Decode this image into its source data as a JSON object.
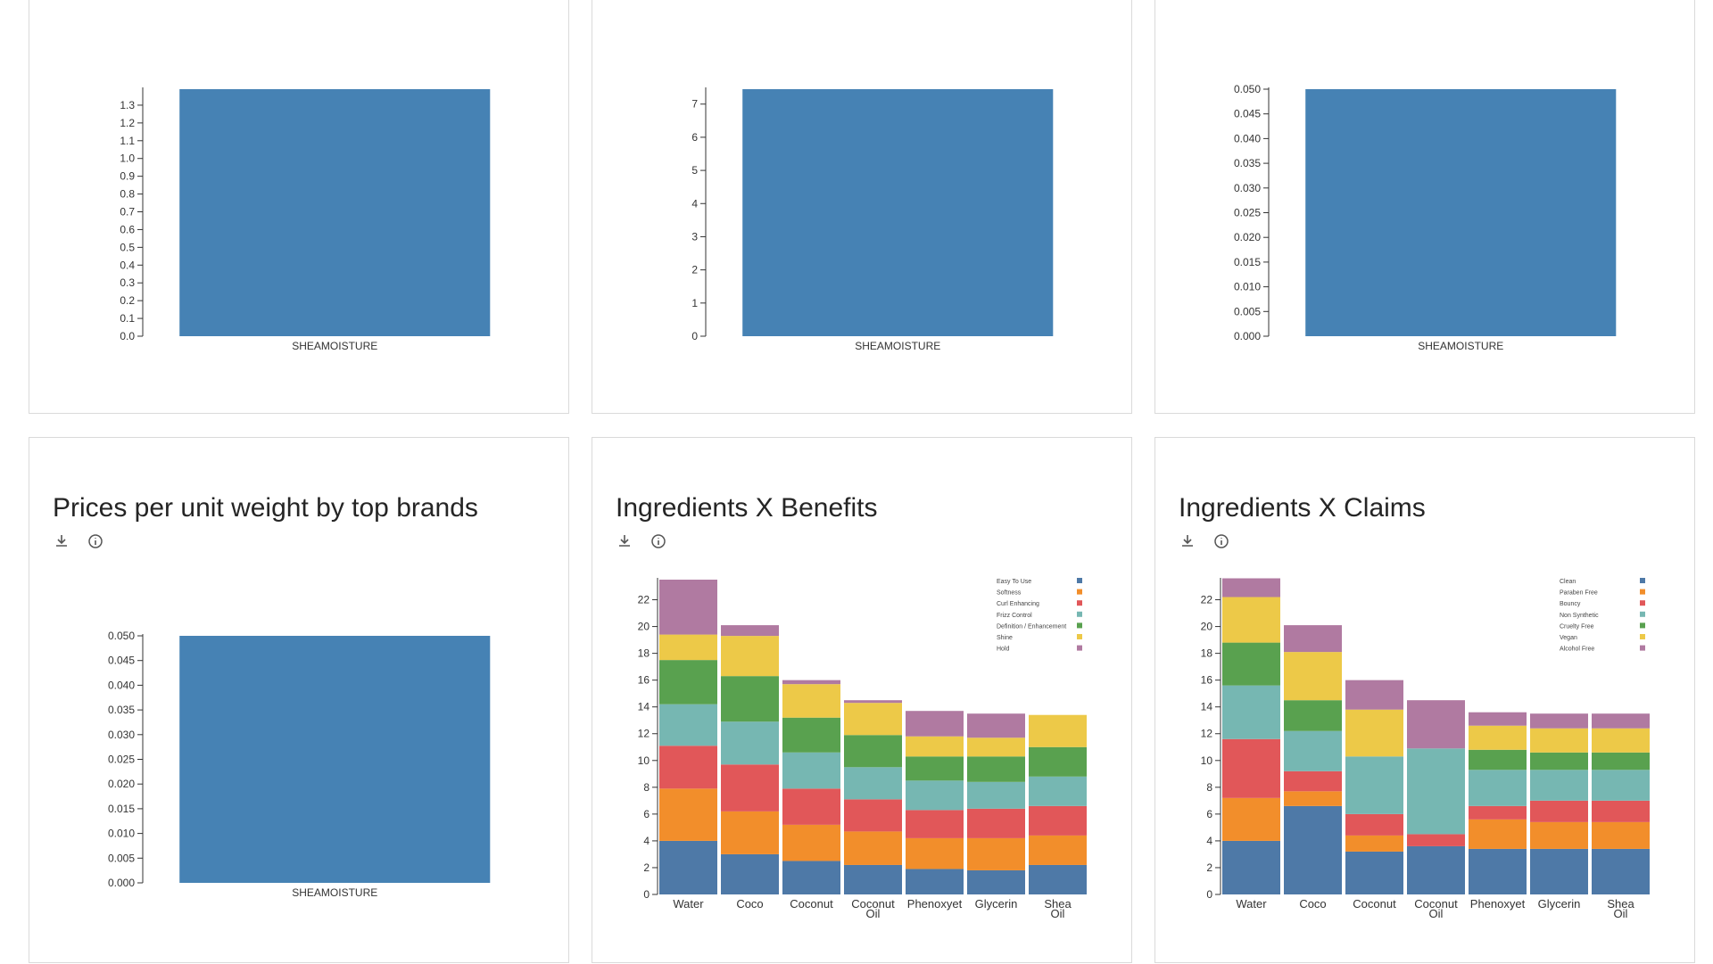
{
  "icons": {
    "download": "download-icon",
    "info": "info-icon"
  },
  "colors": {
    "bar": "#4682b4",
    "card_border": "#dadada"
  },
  "cards": [
    {
      "title": ""
    },
    {
      "title": ""
    },
    {
      "title": ""
    },
    {
      "title": "Prices per unit weight by top brands"
    },
    {
      "title": "Ingredients X Benefits"
    },
    {
      "title": "Ingredients X Claims"
    }
  ],
  "chart_data": [
    {
      "type": "bar",
      "categories": [
        "SHEAMOISTURE"
      ],
      "values": [
        1.39
      ],
      "ylim": [
        0,
        1.39
      ],
      "ticks": [
        0.0,
        0.1,
        0.2,
        0.3,
        0.4,
        0.5,
        0.6,
        0.7,
        0.8,
        0.9,
        1.0,
        1.1,
        1.2,
        1.3
      ],
      "tick_decimals": 1,
      "color": "#4682b4"
    },
    {
      "type": "bar",
      "categories": [
        "SHEAMOISTURE"
      ],
      "values": [
        7.45
      ],
      "ylim": [
        0,
        7.45
      ],
      "ticks": [
        0,
        1,
        2,
        3,
        4,
        5,
        6,
        7
      ],
      "tick_decimals": 0,
      "color": "#4682b4"
    },
    {
      "type": "bar",
      "categories": [
        "SHEAMOISTURE"
      ],
      "values": [
        0.05
      ],
      "ylim": [
        0,
        0.05
      ],
      "ticks": [
        0.0,
        0.005,
        0.01,
        0.015,
        0.02,
        0.025,
        0.03,
        0.035,
        0.04,
        0.045,
        0.05
      ],
      "tick_decimals": 3,
      "color": "#4682b4"
    },
    {
      "type": "bar",
      "title": "Prices per unit weight by top brands",
      "categories": [
        "SHEAMOISTURE"
      ],
      "values": [
        0.05
      ],
      "ylim": [
        0,
        0.05
      ],
      "ticks": [
        0.0,
        0.005,
        0.01,
        0.015,
        0.02,
        0.025,
        0.03,
        0.035,
        0.04,
        0.045,
        0.05
      ],
      "tick_decimals": 3,
      "color": "#4682b4"
    },
    {
      "type": "bar",
      "stacked": true,
      "title": "Ingredients X Benefits",
      "categories": [
        "Water",
        "Coco",
        "Coconut",
        "Coconut Oil",
        "Phenoxyet",
        "Glycerin",
        "Shea Oil"
      ],
      "ylim": [
        0,
        23.5
      ],
      "ticks": [
        0,
        2,
        4,
        6,
        8,
        10,
        12,
        14,
        16,
        18,
        20,
        22
      ],
      "tick_decimals": 0,
      "legend_position": "top-right",
      "series": [
        {
          "name": "Easy To Use",
          "color": "#4e79a7",
          "values": [
            4.0,
            3.0,
            2.5,
            2.2,
            1.9,
            1.8,
            2.2
          ]
        },
        {
          "name": "Softness",
          "color": "#f28e2b",
          "values": [
            3.9,
            3.2,
            2.7,
            2.5,
            2.3,
            2.4,
            2.2
          ]
        },
        {
          "name": "Curl Enhancing",
          "color": "#e15759",
          "values": [
            3.2,
            3.5,
            2.7,
            2.4,
            2.1,
            2.2,
            2.2
          ]
        },
        {
          "name": "Frizz Control",
          "color": "#76b7b2",
          "values": [
            3.1,
            3.2,
            2.7,
            2.4,
            2.2,
            2.0,
            2.2
          ]
        },
        {
          "name": "Definition / Enhancement",
          "color": "#59a14f",
          "values": [
            3.3,
            3.4,
            2.6,
            2.4,
            1.8,
            1.9,
            2.2
          ]
        },
        {
          "name": "Shine",
          "color": "#edc948",
          "values": [
            1.9,
            3.0,
            2.5,
            2.4,
            1.5,
            1.4,
            2.4
          ]
        },
        {
          "name": "Hold",
          "color": "#b07aa1",
          "values": [
            4.1,
            0.8,
            0.3,
            0.2,
            1.9,
            1.8,
            0.0
          ]
        }
      ]
    },
    {
      "type": "bar",
      "stacked": true,
      "title": "Ingredients X Claims",
      "categories": [
        "Water",
        "Coco",
        "Coconut",
        "Coconut Oil",
        "Phenoxyet",
        "Glycerin",
        "Shea Oil"
      ],
      "ylim": [
        0,
        23.5
      ],
      "ticks": [
        0,
        2,
        4,
        6,
        8,
        10,
        12,
        14,
        16,
        18,
        20,
        22
      ],
      "tick_decimals": 0,
      "legend_position": "top-right",
      "series": [
        {
          "name": "Clean",
          "color": "#4e79a7",
          "values": [
            4.0,
            6.6,
            3.2,
            3.6,
            3.4,
            3.4,
            3.4
          ]
        },
        {
          "name": "Paraben Free",
          "color": "#f28e2b",
          "values": [
            3.2,
            1.1,
            1.2,
            0.0,
            2.2,
            2.0,
            2.0
          ]
        },
        {
          "name": "Bouncy",
          "color": "#e15759",
          "values": [
            4.4,
            1.5,
            1.6,
            0.9,
            1.0,
            1.6,
            1.6
          ]
        },
        {
          "name": "Non Synthetic",
          "color": "#76b7b2",
          "values": [
            4.0,
            3.0,
            4.3,
            6.4,
            2.7,
            2.3,
            2.3
          ]
        },
        {
          "name": "Cruelty Free",
          "color": "#59a14f",
          "values": [
            3.2,
            2.3,
            0.0,
            0.0,
            1.5,
            1.3,
            1.3
          ]
        },
        {
          "name": "Vegan",
          "color": "#edc948",
          "values": [
            3.4,
            3.6,
            3.5,
            0.0,
            1.8,
            1.8,
            1.8
          ]
        },
        {
          "name": "Alcohol Free",
          "color": "#b07aa1",
          "values": [
            1.4,
            2.0,
            2.2,
            3.6,
            1.0,
            1.1,
            1.1
          ]
        }
      ]
    }
  ]
}
